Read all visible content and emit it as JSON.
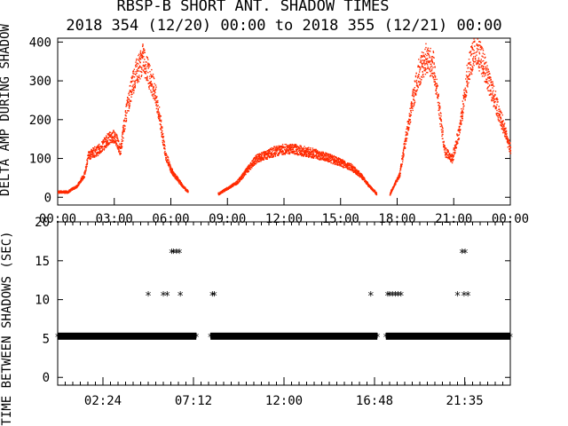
{
  "figure": {
    "title": "RBSP-B SHORT ANT. SHADOW TIMES",
    "subtitle": "2018 354 (12/20) 00:00 to 2018 355 (12/21) 00:00"
  },
  "chart_data": [
    {
      "type": "scatter",
      "ylabel": "DELTA AMP DURING SHADOW",
      "xlim": [
        0,
        24
      ],
      "ylim": [
        -20,
        410
      ],
      "x_tick_labels": [
        "00:00",
        "03:00",
        "06:00",
        "09:00",
        "12:00",
        "15:00",
        "18:00",
        "21:00",
        "00:00"
      ],
      "x_ticks_hours": [
        0,
        3,
        6,
        9,
        12,
        15,
        18,
        21,
        24
      ],
      "y_ticks": [
        0,
        100,
        200,
        300,
        400
      ],
      "series": [
        {
          "color": "#ff2a00",
          "segments": [
            {
              "x": [
                0.0,
                0.5,
                1.0,
                1.4,
                1.6,
                1.8,
                2.2,
                2.6,
                3.0,
                3.3,
                3.6,
                3.9,
                4.2,
                4.5,
                4.8,
                5.1,
                5.4,
                5.7,
                6.0,
                6.3,
                6.6,
                6.9
              ],
              "y": [
                15,
                15,
                30,
                60,
                110,
                115,
                125,
                150,
                160,
                120,
                220,
                290,
                330,
                360,
                320,
                280,
                200,
                110,
                70,
                50,
                30,
                15
              ]
            },
            {
              "x": [
                8.5,
                9.5,
                10.5,
                11.5,
                12.0,
                12.5,
                13.5,
                14.5,
                15.5,
                16.0,
                16.5,
                16.9
              ],
              "y": [
                10,
                40,
                100,
                120,
                125,
                125,
                115,
                100,
                80,
                60,
                30,
                10
              ]
            },
            {
              "x": [
                17.6,
                18.1,
                18.6,
                19.1,
                19.5,
                19.9,
                20.2,
                20.5,
                20.9,
                21.3,
                21.7,
                22.1,
                22.5,
                22.9,
                23.3,
                23.7,
                24.0
              ],
              "y": [
                10,
                60,
                200,
                320,
                360,
                340,
                230,
                120,
                100,
                180,
                320,
                390,
                350,
                290,
                230,
                170,
                120
              ]
            }
          ]
        }
      ]
    },
    {
      "type": "scatter",
      "ylabel": "TIME BETWEEN SHADOWS (SEC)",
      "xlim": [
        0,
        24
      ],
      "ylim": [
        -1,
        20
      ],
      "x_tick_labels": [
        "02:24",
        "07:12",
        "12:00",
        "16:48",
        "21:35"
      ],
      "x_ticks_hours": [
        2.4,
        7.2,
        12.0,
        16.8,
        21.583
      ],
      "y_ticks": [
        0,
        5,
        10,
        15,
        20
      ],
      "baseline": {
        "y": 5.3,
        "ranges": [
          [
            0.0,
            7.35
          ],
          [
            8.1,
            16.95
          ],
          [
            17.4,
            24.0
          ]
        ]
      },
      "points": {
        "x": [
          4.8,
          5.6,
          5.8,
          6.05,
          6.15,
          6.3,
          6.45,
          6.5,
          8.2,
          8.3,
          16.6,
          17.5,
          17.6,
          17.75,
          17.9,
          18.05,
          18.2,
          21.2,
          21.45,
          21.55,
          21.6,
          21.75
        ],
        "y": [
          10.5,
          10.5,
          10.5,
          16,
          16,
          16,
          16,
          10.5,
          10.5,
          10.5,
          10.5,
          10.5,
          10.5,
          10.5,
          10.5,
          10.5,
          10.5,
          10.5,
          16,
          10.5,
          16,
          10.5
        ]
      },
      "marker": "*"
    }
  ]
}
